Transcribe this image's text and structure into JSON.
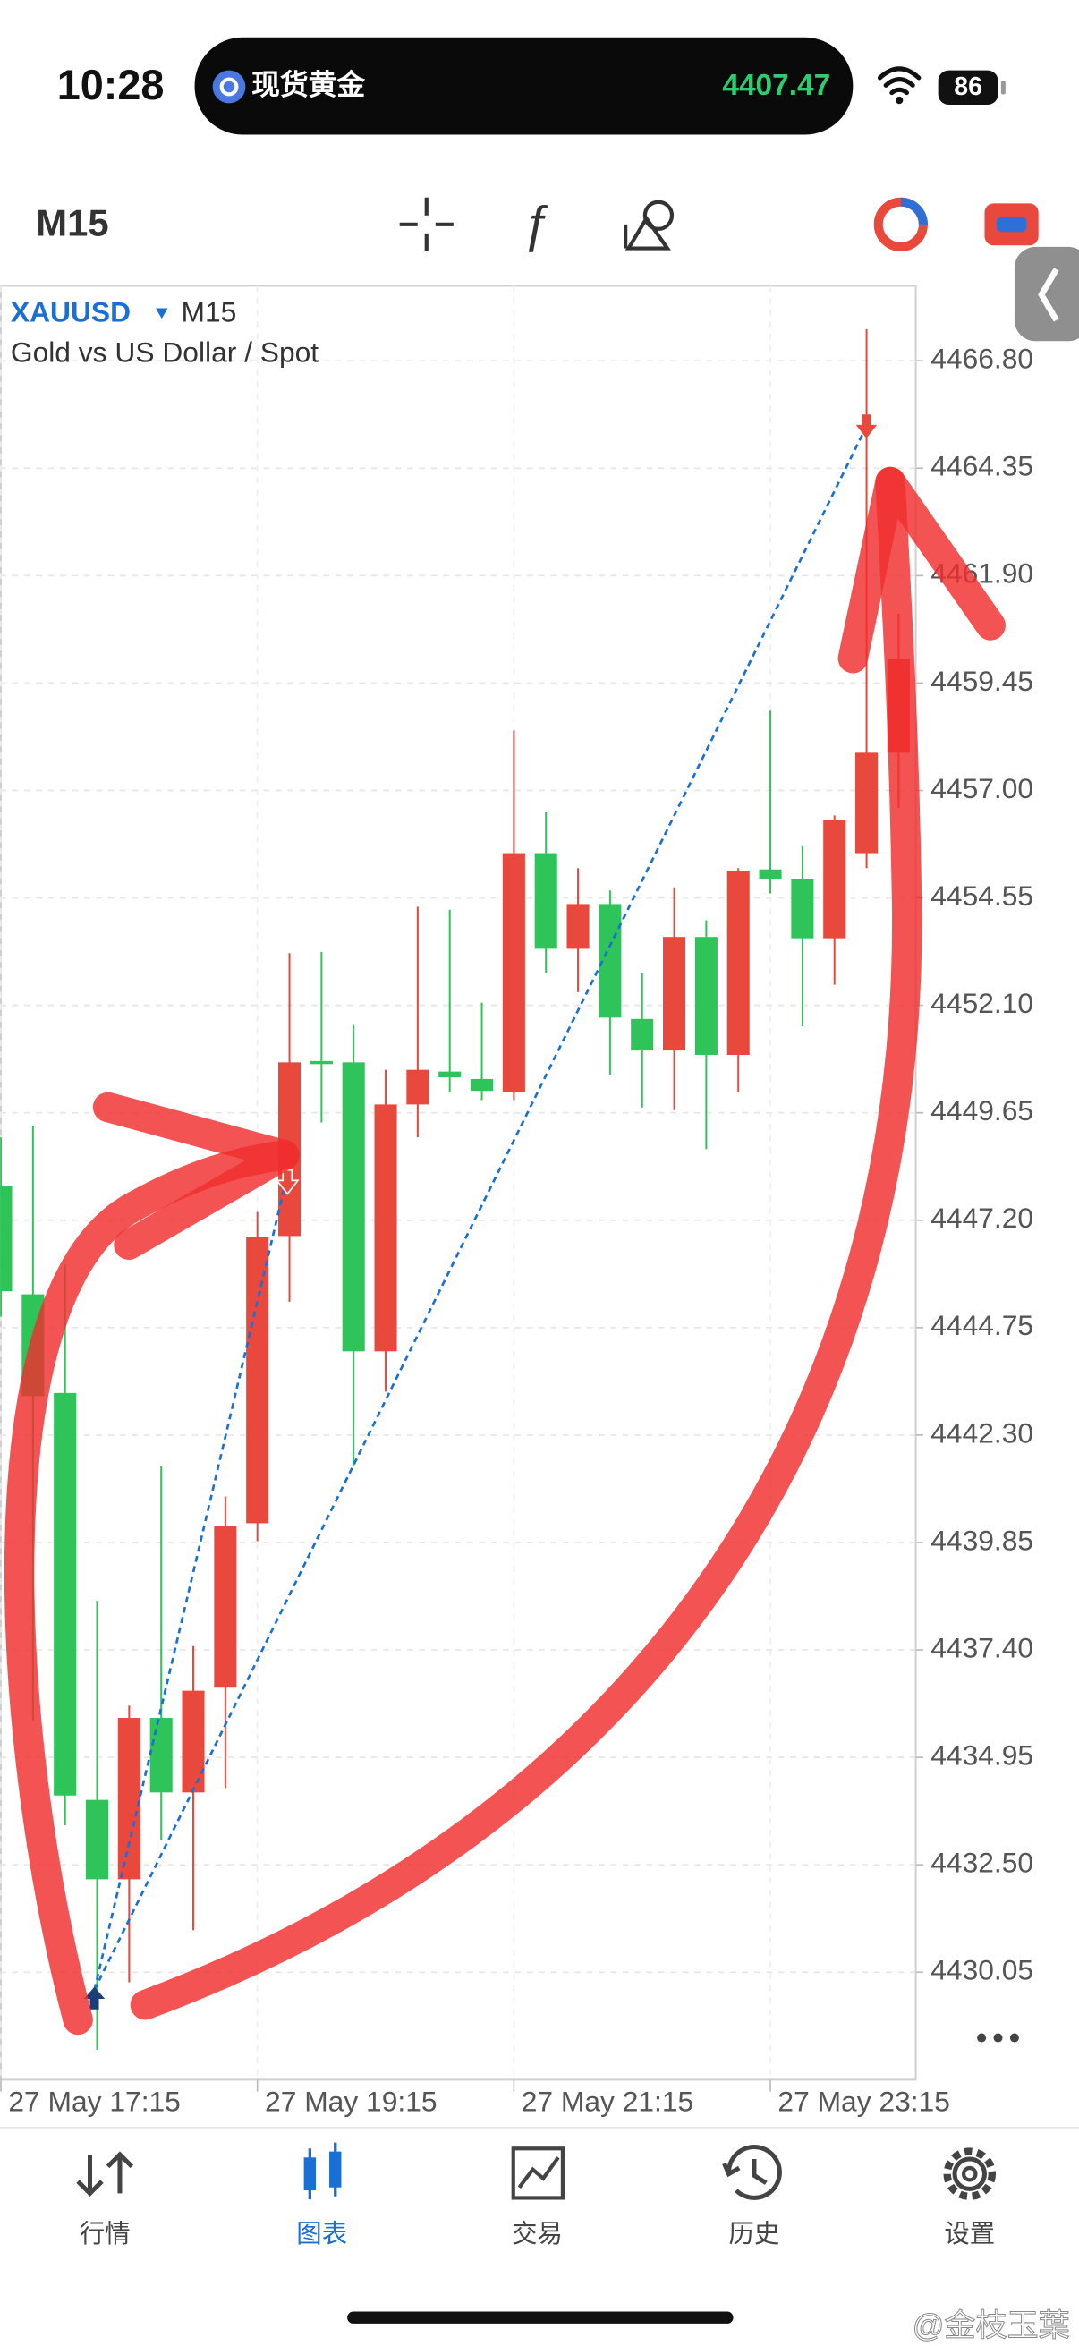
{
  "status_bar": {
    "time": "10:28",
    "island_label": "现货黄金",
    "island_price": "4407.47",
    "battery": "86"
  },
  "toolbar": {
    "timeframe": "M15"
  },
  "chart_data": {
    "type": "candlestick",
    "symbol": "XAUUSD",
    "timeframe": "M15",
    "subtitle": "Gold vs US Dollar / Spot",
    "categories": [
      "27 May 17:15",
      null,
      null,
      null,
      null,
      null,
      null,
      null,
      "27 May 19:15",
      null,
      null,
      null,
      null,
      null,
      null,
      null,
      "27 May 21:15",
      null,
      null,
      null,
      null,
      null,
      null,
      null,
      "27 May 23:15",
      null,
      null,
      null,
      null
    ],
    "open": [
      4447.97,
      4445.51,
      4443.26,
      4433.98,
      4432.17,
      4435.85,
      4434.15,
      4436.54,
      4440.29,
      4446.84,
      4450.83,
      4450.8,
      4444.21,
      4449.84,
      4450.59,
      4450.42,
      4450.12,
      4455.57,
      4453.39,
      4454.41,
      4451.79,
      4451.07,
      4453.66,
      4450.97,
      4455.2,
      4454.99,
      4453.63,
      4455.57,
      4457.86
    ],
    "high": [
      4449.09,
      4449.36,
      4446.19,
      4438.52,
      4436.13,
      4441.59,
      4437.49,
      4440.9,
      4447.39,
      4453.29,
      4453.32,
      4451.65,
      4450.63,
      4454.35,
      4454.28,
      4452.16,
      4458.37,
      4456.5,
      4455.23,
      4454.72,
      4452.84,
      4454.79,
      4454.04,
      4455.23,
      4458.82,
      4455.75,
      4456.43,
      4467.52,
      4461.03
    ],
    "low": [
      4445.0,
      4435.79,
      4433.4,
      4428.28,
      4429.82,
      4433.06,
      4431.01,
      4434.25,
      4439.88,
      4445.34,
      4449.43,
      4441.59,
      4443.29,
      4449.09,
      4450.12,
      4449.94,
      4449.94,
      4452.84,
      4452.4,
      4450.52,
      4449.77,
      4449.71,
      4448.82,
      4450.12,
      4454.65,
      4451.62,
      4452.57,
      4455.23,
      4456.6
    ],
    "close": [
      4445.58,
      4443.19,
      4434.08,
      4432.17,
      4435.85,
      4434.15,
      4436.47,
      4440.22,
      4446.81,
      4450.8,
      4450.76,
      4444.21,
      4449.84,
      4450.63,
      4450.46,
      4450.15,
      4455.57,
      4453.39,
      4454.41,
      4451.82,
      4451.07,
      4453.66,
      4450.97,
      4455.17,
      4454.99,
      4453.63,
      4456.33,
      4457.86,
      4460.01
    ],
    "up_color": "#e8493c",
    "down_color": "#2fc45a",
    "ylim": [
      4427.6,
      4468.51
    ],
    "yticks": [
      {
        "value": 4466.8,
        "label": "4466.80"
      },
      4464.35,
      {
        "value": 4461.9,
        "label": "4461.90"
      },
      4459.45,
      {
        "value": 4457,
        "label": "4457.00"
      },
      4454.55,
      {
        "value": 4452.1,
        "label": "4452.10"
      },
      4449.65,
      {
        "value": 4447.2,
        "label": "4447.20"
      },
      4444.75,
      {
        "value": 4442.3,
        "label": "4442.30"
      },
      4439.85,
      {
        "value": 4437.4,
        "label": "4437.40"
      },
      4434.95,
      {
        "value": 4432.5,
        "label": "4432.50"
      },
      4430.05
    ],
    "grid": true
  },
  "tab_bar": {
    "tabs": [
      "行情",
      "图表",
      "交易",
      "历史",
      "设置"
    ]
  },
  "watermark": "@金枝玉葉"
}
